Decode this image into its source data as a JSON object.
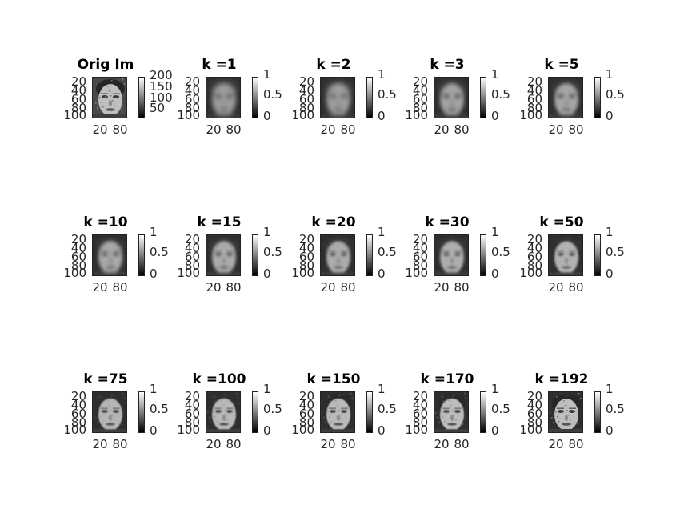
{
  "chart_data": [
    {
      "type": "image",
      "title": "Orig Im",
      "yticks": [
        "20",
        "40",
        "60",
        "80",
        "100"
      ],
      "xticks": [
        "20",
        "80"
      ],
      "colorbar_ticks": [
        "200",
        "150",
        "100",
        "50"
      ],
      "colorbar_range": [
        0,
        255
      ],
      "colormap": "gray",
      "sharpness": 1.0
    },
    {
      "type": "image",
      "title": "k =1",
      "k": 1,
      "yticks": [
        "20",
        "40",
        "60",
        "80",
        "100"
      ],
      "xticks": [
        "20",
        "80"
      ],
      "colorbar_ticks": [
        "1",
        "0.5",
        "0"
      ],
      "colorbar_range": [
        0,
        1
      ],
      "colormap": "gray",
      "sharpness": 0.15
    },
    {
      "type": "image",
      "title": "k =2",
      "k": 2,
      "yticks": [
        "20",
        "40",
        "60",
        "80",
        "100"
      ],
      "xticks": [
        "20",
        "80"
      ],
      "colorbar_ticks": [
        "1",
        "0.5",
        "0"
      ],
      "colorbar_range": [
        0,
        1
      ],
      "colormap": "gray",
      "sharpness": 0.2
    },
    {
      "type": "image",
      "title": "k =3",
      "k": 3,
      "yticks": [
        "20",
        "40",
        "60",
        "80",
        "100"
      ],
      "xticks": [
        "20",
        "80"
      ],
      "colorbar_ticks": [
        "1",
        "0.5",
        "0"
      ],
      "colorbar_range": [
        0,
        1
      ],
      "colormap": "gray",
      "sharpness": 0.3
    },
    {
      "type": "image",
      "title": "k =5",
      "k": 5,
      "yticks": [
        "20",
        "40",
        "60",
        "80",
        "100"
      ],
      "xticks": [
        "20",
        "80"
      ],
      "colorbar_ticks": [
        "1",
        "0.5",
        "0"
      ],
      "colorbar_range": [
        0,
        1
      ],
      "colormap": "gray",
      "sharpness": 0.4
    },
    {
      "type": "image",
      "title": "k =10",
      "k": 10,
      "yticks": [
        "20",
        "40",
        "60",
        "80",
        "100"
      ],
      "xticks": [
        "20",
        "80"
      ],
      "colorbar_ticks": [
        "1",
        "0.5",
        "0"
      ],
      "colorbar_range": [
        0,
        1
      ],
      "colormap": "gray",
      "sharpness": 0.45
    },
    {
      "type": "image",
      "title": "k =15",
      "k": 15,
      "yticks": [
        "20",
        "40",
        "60",
        "80",
        "100"
      ],
      "xticks": [
        "20",
        "80"
      ],
      "colorbar_ticks": [
        "1",
        "0.5",
        "0"
      ],
      "colorbar_range": [
        0,
        1
      ],
      "colormap": "gray",
      "sharpness": 0.5
    },
    {
      "type": "image",
      "title": "k =20",
      "k": 20,
      "yticks": [
        "20",
        "40",
        "60",
        "80",
        "100"
      ],
      "xticks": [
        "20",
        "80"
      ],
      "colorbar_ticks": [
        "1",
        "0.5",
        "0"
      ],
      "colorbar_range": [
        0,
        1
      ],
      "colormap": "gray",
      "sharpness": 0.55
    },
    {
      "type": "image",
      "title": "k =30",
      "k": 30,
      "yticks": [
        "20",
        "40",
        "60",
        "80",
        "100"
      ],
      "xticks": [
        "20",
        "80"
      ],
      "colorbar_ticks": [
        "1",
        "0.5",
        "0"
      ],
      "colorbar_range": [
        0,
        1
      ],
      "colormap": "gray",
      "sharpness": 0.6
    },
    {
      "type": "image",
      "title": "k =50",
      "k": 50,
      "yticks": [
        "20",
        "40",
        "60",
        "80",
        "100"
      ],
      "xticks": [
        "20",
        "80"
      ],
      "colorbar_ticks": [
        "1",
        "0.5",
        "0"
      ],
      "colorbar_range": [
        0,
        1
      ],
      "colormap": "gray",
      "sharpness": 0.7
    },
    {
      "type": "image",
      "title": "k =75",
      "k": 75,
      "yticks": [
        "20",
        "40",
        "60",
        "80",
        "100"
      ],
      "xticks": [
        "20",
        "80"
      ],
      "colorbar_ticks": [
        "1",
        "0.5",
        "0"
      ],
      "colorbar_range": [
        0,
        1
      ],
      "colormap": "gray",
      "sharpness": 0.8
    },
    {
      "type": "image",
      "title": "k =100",
      "k": 100,
      "yticks": [
        "20",
        "40",
        "60",
        "80",
        "100"
      ],
      "xticks": [
        "20",
        "80"
      ],
      "colorbar_ticks": [
        "1",
        "0.5",
        "0"
      ],
      "colorbar_range": [
        0,
        1
      ],
      "colormap": "gray",
      "sharpness": 0.85
    },
    {
      "type": "image",
      "title": "k =150",
      "k": 150,
      "yticks": [
        "20",
        "40",
        "60",
        "80",
        "100"
      ],
      "xticks": [
        "20",
        "80"
      ],
      "colorbar_ticks": [
        "1",
        "0.5",
        "0"
      ],
      "colorbar_range": [
        0,
        1
      ],
      "colormap": "gray",
      "sharpness": 0.9
    },
    {
      "type": "image",
      "title": "k =170",
      "k": 170,
      "yticks": [
        "20",
        "40",
        "60",
        "80",
        "100"
      ],
      "xticks": [
        "20",
        "80"
      ],
      "colorbar_ticks": [
        "1",
        "0.5",
        "0"
      ],
      "colorbar_range": [
        0,
        1
      ],
      "colormap": "gray",
      "sharpness": 0.95
    },
    {
      "type": "image",
      "title": "k =192",
      "k": 192,
      "yticks": [
        "20",
        "40",
        "60",
        "80",
        "100"
      ],
      "xticks": [
        "20",
        "80"
      ],
      "colorbar_ticks": [
        "1",
        "0.5",
        "0"
      ],
      "colorbar_range": [
        0,
        1
      ],
      "colormap": "gray",
      "sharpness": 1.0
    }
  ]
}
